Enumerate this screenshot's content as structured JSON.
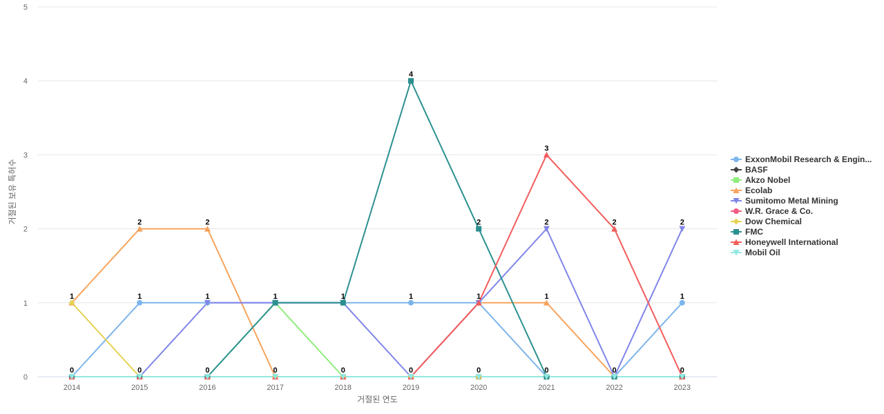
{
  "chart_data": {
    "type": "line",
    "title": "",
    "xlabel": "거절된 연도",
    "ylabel": "거절된 보유 특허수",
    "categories": [
      "2014",
      "2015",
      "2016",
      "2017",
      "2018",
      "2019",
      "2020",
      "2021",
      "2022",
      "2023"
    ],
    "ylim": [
      0,
      5
    ],
    "yticks": [
      0,
      1,
      2,
      3,
      4,
      5
    ],
    "grid": "horizontal",
    "legend_position": "right",
    "series": [
      {
        "name": "ExxonMobil Research & Engin...",
        "color": "#7cb5ec",
        "marker": "circle",
        "values": [
          0,
          1,
          1,
          1,
          1,
          1,
          1,
          0,
          0,
          1
        ]
      },
      {
        "name": "BASF",
        "color": "#434348",
        "marker": "diamond",
        "values": [
          0,
          0,
          0,
          0,
          0,
          0,
          0,
          0,
          0,
          0
        ]
      },
      {
        "name": "Akzo Nobel",
        "color": "#90ed7d",
        "marker": "square",
        "values": [
          0,
          0,
          0,
          1,
          0,
          0,
          0,
          0,
          0,
          0
        ]
      },
      {
        "name": "Ecolab",
        "color": "#f7a35c",
        "marker": "triangle",
        "values": [
          1,
          2,
          2,
          0,
          0,
          0,
          1,
          1,
          0,
          0
        ]
      },
      {
        "name": "Sumitomo Metal Mining",
        "color": "#8085e9",
        "marker": "triangle-down",
        "values": [
          0,
          0,
          1,
          1,
          1,
          0,
          1,
          2,
          0,
          2
        ]
      },
      {
        "name": "W.R. Grace & Co.",
        "color": "#f15c80",
        "marker": "circle",
        "values": [
          0,
          0,
          0,
          0,
          0,
          0,
          0,
          0,
          0,
          0
        ]
      },
      {
        "name": "Dow Chemical",
        "color": "#e4d354",
        "marker": "diamond",
        "values": [
          1,
          0,
          0,
          0,
          0,
          0,
          0,
          0,
          0,
          0
        ]
      },
      {
        "name": "FMC",
        "color": "#2b908f",
        "marker": "square",
        "values": [
          0,
          0,
          0,
          1,
          1,
          4,
          2,
          0,
          0,
          0
        ]
      },
      {
        "name": "Honeywell International",
        "color": "#f45b5b",
        "marker": "triangle",
        "values": [
          0,
          0,
          0,
          0,
          0,
          0,
          1,
          3,
          2,
          0
        ]
      },
      {
        "name": "Mobil Oil",
        "color": "#91e8e1",
        "marker": "triangle-down",
        "values": [
          0,
          0,
          0,
          0,
          0,
          0,
          0,
          0,
          0,
          0
        ]
      }
    ],
    "data_labels": [
      {
        "category": "2014",
        "values": [
          "0",
          "1"
        ]
      },
      {
        "category": "2015",
        "values": [
          "0",
          "1",
          "2"
        ]
      },
      {
        "category": "2016",
        "values": [
          "0",
          "1",
          "2"
        ]
      },
      {
        "category": "2017",
        "values": [
          "0",
          "1"
        ]
      },
      {
        "category": "2018",
        "values": [
          "0",
          "1"
        ]
      },
      {
        "category": "2019",
        "values": [
          "0",
          "1",
          "4"
        ]
      },
      {
        "category": "2020",
        "values": [
          "0",
          "1",
          "2"
        ]
      },
      {
        "category": "2021",
        "values": [
          "0",
          "1",
          "2",
          "3"
        ]
      },
      {
        "category": "2022",
        "values": [
          "0",
          "2"
        ]
      },
      {
        "category": "2023",
        "values": [
          "0",
          "1",
          "2"
        ]
      }
    ]
  }
}
